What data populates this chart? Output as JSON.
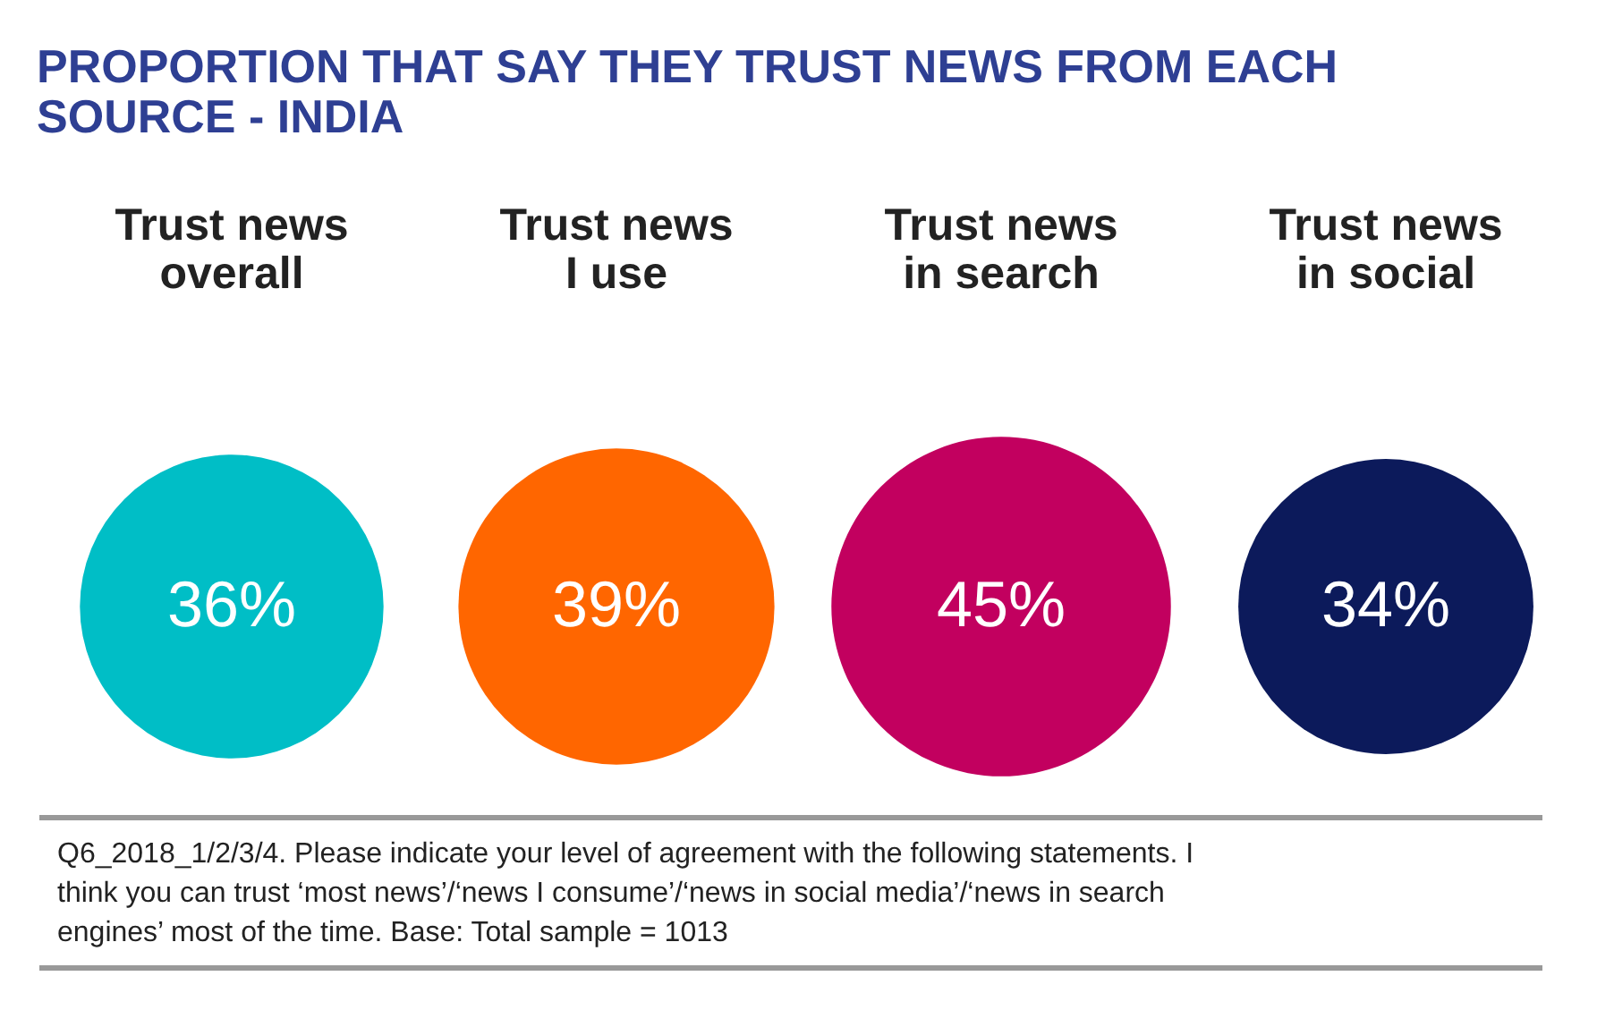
{
  "chart_data": {
    "type": "other",
    "title": "PROPORTION THAT SAY THEY TRUST NEWS FROM EACH SOURCE - INDIA",
    "categories": [
      "Trust news overall",
      "Trust news I use",
      "Trust news in search",
      "Trust news in social"
    ],
    "values": [
      36,
      39,
      45,
      34
    ],
    "value_labels": [
      "36%",
      "39%",
      "45%",
      "34%"
    ],
    "colors": [
      "#00bec6",
      "#ff6600",
      "#c2005f",
      "#0c1a5b"
    ],
    "annotations": [
      "Q6_2018_1/2/3/4. Please indicate your level of agreement with the following statements. I think you can trust ‘most news’/‘news I consume’/‘news in social media’/‘news in search engines’ most of the time. Base: Total sample = 1013"
    ]
  }
}
